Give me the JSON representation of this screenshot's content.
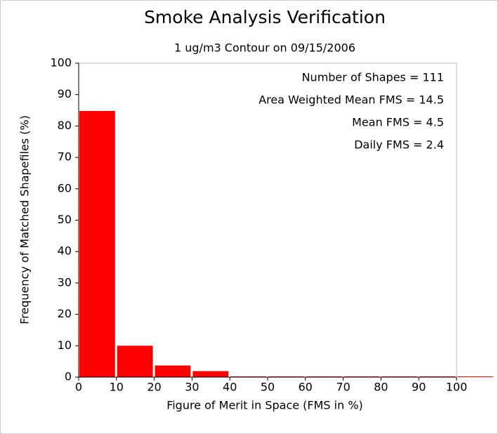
{
  "chart_data": {
    "type": "histogram",
    "title": "Smoke Analysis Verification",
    "subtitle": "1 ug/m3 Contour on 09/15/2006",
    "xlabel": "Figure of Merit in Space (FMS in %)",
    "ylabel": "Frequency of Matched Shapefiles (%)",
    "annotations": [
      "Number of Shapes = 111",
      "Area Weighted Mean FMS = 14.5",
      "Mean FMS = 4.5",
      "Daily FMS = 2.4"
    ],
    "bins": [
      0,
      10,
      20,
      30,
      40,
      50,
      60,
      70,
      80,
      90,
      100,
      110
    ],
    "values": [
      84.8,
      10,
      3.7,
      1.9,
      0,
      0,
      0,
      0,
      0,
      0,
      0
    ],
    "color": "#ff0000",
    "xlim": [
      0,
      100
    ],
    "xticks": [
      0,
      10,
      20,
      30,
      40,
      50,
      60,
      70,
      80,
      90,
      100
    ],
    "ylim": [
      0,
      100
    ],
    "yticks": [
      0,
      10,
      20,
      30,
      40,
      50,
      60,
      70,
      80,
      90,
      100
    ]
  }
}
